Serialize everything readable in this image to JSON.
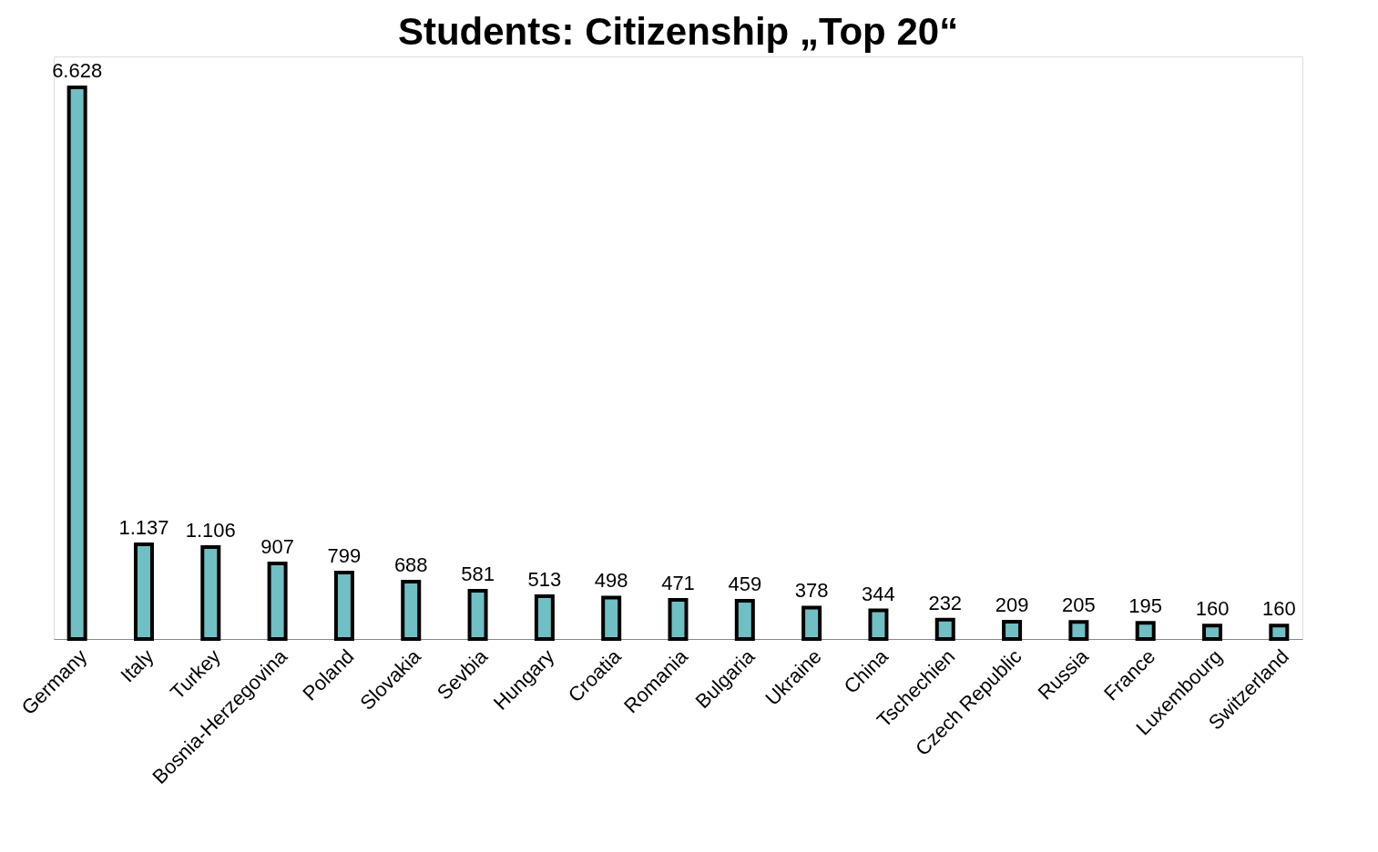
{
  "chart_data": {
    "type": "bar",
    "title": "Students: Citizenship „Top 20“",
    "categories": [
      "Germany",
      "Italy",
      "Turkey",
      "Bosnia-Herzegovina",
      "Poland",
      "Slovakia",
      "Sevbia",
      "Hungary",
      "Croatia",
      "Romania",
      "Bulgaria",
      "Ukraine",
      "China",
      "Tschechien",
      "Czech Republic",
      "Russia",
      "France",
      "Luxembourg",
      "Switzerland"
    ],
    "values": [
      6628,
      1137,
      1106,
      907,
      799,
      688,
      581,
      513,
      498,
      471,
      459,
      378,
      344,
      232,
      209,
      205,
      195,
      160,
      160
    ],
    "value_labels": [
      "6.628",
      "1.137",
      "1.106",
      "907",
      "799",
      "688",
      "581",
      "513",
      "498",
      "471",
      "459",
      "378",
      "344",
      "232",
      "209",
      "205",
      "195",
      "160",
      "160"
    ],
    "color": "#70bfc4"
  }
}
